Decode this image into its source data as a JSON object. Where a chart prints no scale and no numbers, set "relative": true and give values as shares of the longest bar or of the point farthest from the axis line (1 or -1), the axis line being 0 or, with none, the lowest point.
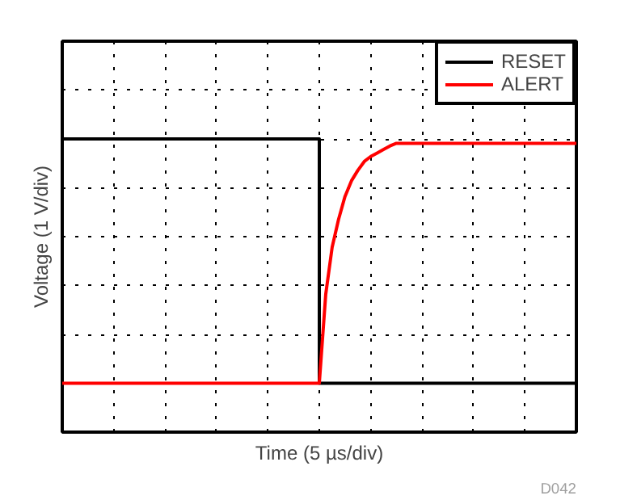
{
  "chart_data": {
    "type": "line",
    "relative": true,
    "xlabel": "Time (5 µs/div)",
    "ylabel": "Voltage (1 V/div)",
    "categories": [
      null,
      null,
      null,
      null,
      null,
      null,
      null,
      null,
      null,
      null,
      null,
      null,
      null,
      null,
      null,
      null,
      null,
      null,
      null,
      null,
      null,
      null,
      null,
      null,
      null,
      null,
      null,
      null,
      null,
      null,
      null,
      null,
      null,
      null,
      null,
      null,
      null,
      null,
      null,
      null,
      null,
      null,
      null,
      null,
      null,
      null,
      null,
      null,
      null,
      null,
      null,
      null,
      null,
      null,
      null,
      null,
      null,
      null,
      null,
      null,
      null,
      null,
      null,
      null,
      null,
      null,
      null,
      null,
      null,
      null,
      null,
      null,
      null,
      null,
      null,
      null,
      null,
      null,
      null,
      null,
      null
    ],
    "series": [
      {
        "name": "RESET",
        "type": "step",
        "color": "#000000",
        "values": [
          1,
          1,
          1,
          1,
          1,
          1,
          1,
          1,
          1,
          1,
          1,
          1,
          1,
          1,
          1,
          1,
          1,
          1,
          1,
          1,
          1,
          1,
          1,
          1,
          1,
          1,
          1,
          1,
          1,
          1,
          1,
          1,
          1,
          1,
          1,
          1,
          1,
          1,
          1,
          1,
          0.167,
          0.167,
          0.167,
          0.167,
          0.167,
          0.167,
          0.167,
          0.167,
          0.167,
          0.167,
          0.167,
          0.167,
          0.167,
          0.167,
          0.167,
          0.167,
          0.167,
          0.167,
          0.167,
          0.167,
          0.167,
          0.167,
          0.167,
          0.167,
          0.167,
          0.167,
          0.167,
          0.167,
          0.167,
          0.167,
          0.167,
          0.167,
          0.167,
          0.167,
          0.167,
          0.167,
          0.167,
          0.167,
          0.167,
          0.167,
          0.167
        ]
      },
      {
        "name": "ALERT",
        "color": "#ff0000",
        "values": [
          0.167,
          0.167,
          0.167,
          0.167,
          0.167,
          0.167,
          0.167,
          0.167,
          0.167,
          0.167,
          0.167,
          0.167,
          0.167,
          0.167,
          0.167,
          0.167,
          0.167,
          0.167,
          0.167,
          0.167,
          0.167,
          0.167,
          0.167,
          0.167,
          0.167,
          0.167,
          0.167,
          0.167,
          0.167,
          0.167,
          0.167,
          0.167,
          0.167,
          0.167,
          0.167,
          0.167,
          0.167,
          0.167,
          0.167,
          0.167,
          0.167,
          0.47,
          0.631,
          0.726,
          0.804,
          0.857,
          0.893,
          0.923,
          0.94,
          0.952,
          0.964,
          0.976,
          0.985,
          0.985,
          0.985,
          0.985,
          0.985,
          0.985,
          0.985,
          0.985,
          0.985,
          0.985,
          0.985,
          0.985,
          0.985,
          0.985,
          0.985,
          0.985,
          0.985,
          0.985,
          0.985,
          0.985,
          0.985,
          0.985,
          0.985,
          0.985,
          0.985,
          0.985,
          0.985,
          0.985,
          0.985
        ]
      }
    ],
    "grid": true,
    "legend": "top right",
    "annotations": [
      "D042"
    ]
  }
}
